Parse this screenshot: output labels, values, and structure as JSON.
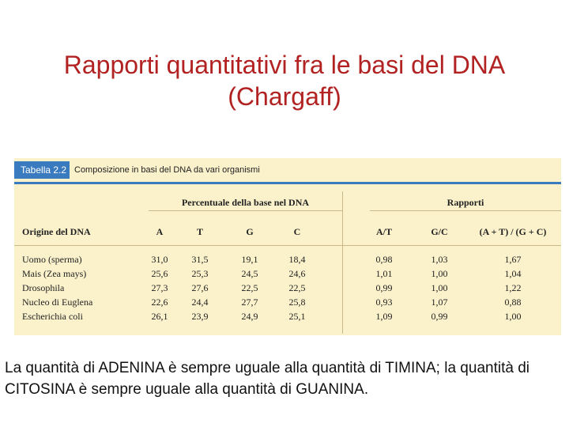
{
  "title": {
    "line1": "Rapporti quantitativi fra le basi del DNA",
    "line2": "(Chargaff)"
  },
  "table": {
    "tag": "Tabella 2.2",
    "caption": "Composizione in basi del DNA da vari organismi",
    "group_percent": "Percentuale della base nel DNA",
    "group_ratios": "Rapporti",
    "headers": [
      "Origine del DNA",
      "A",
      "T",
      "G",
      "C",
      "A/T",
      "G/C",
      "(A + T) / (G + C)"
    ],
    "rows": [
      {
        "origin": "Uomo (sperma)",
        "a": "31,0",
        "t": "31,5",
        "g": "19,1",
        "c": "18,4",
        "at": "0,98",
        "gc": "1,03",
        "ratio": "1,67"
      },
      {
        "origin": "Mais (Zea mays)",
        "a": "25,6",
        "t": "25,3",
        "g": "24,5",
        "c": "24,6",
        "at": "1,01",
        "gc": "1,00",
        "ratio": "1,04"
      },
      {
        "origin": "Drosophila",
        "a": "27,3",
        "t": "27,6",
        "g": "22,5",
        "c": "22,5",
        "at": "0,99",
        "gc": "1,00",
        "ratio": "1,22"
      },
      {
        "origin": "Nucleo di Euglena",
        "a": "22,6",
        "t": "24,4",
        "g": "27,7",
        "c": "25,8",
        "at": "0,93",
        "gc": "1,07",
        "ratio": "0,88"
      },
      {
        "origin": "Escherichia coli",
        "a": "26,1",
        "t": "23,9",
        "g": "24,9",
        "c": "25,1",
        "at": "1,09",
        "gc": "0,99",
        "ratio": "1,00"
      }
    ]
  },
  "footer": {
    "text": "La quantità di ADENINA è sempre uguale alla quantità di TIMINA; la quantità di CITOSINA è sempre uguale alla quantità di GUANINA."
  },
  "colors": {
    "title": "#b22222",
    "table_background": "#fbf2cc",
    "accent_blue": "#3a7bbf"
  }
}
